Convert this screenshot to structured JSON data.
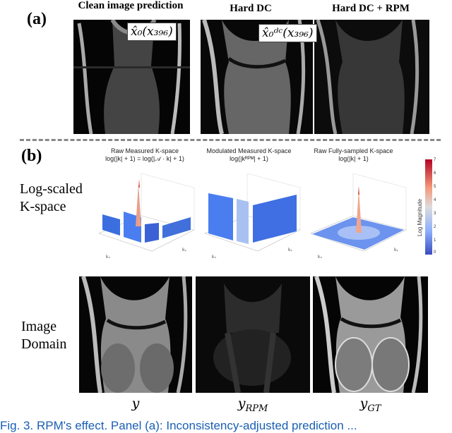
{
  "panel_a": {
    "letter": "(a)",
    "titles": [
      "Clean image prediction",
      "Hard DC",
      "Hard DC + RPM"
    ],
    "labels": [
      "x̂₀(x₃₉₆)",
      "x̂₀ᵈᶜ(x₃₉₆)"
    ]
  },
  "panel_b": {
    "letter": "(b)",
    "row1_label_line1": "Log-scaled",
    "row1_label_line2": "K-space",
    "row2_label_line1": "Image",
    "row2_label_line2": "Domain",
    "kspace_titles": [
      {
        "line1": "Raw Measured K-space",
        "line2": "log(|k| + 1) = log(|𝒜 · k| + 1)"
      },
      {
        "line1": "Modulated Measured K-space",
        "line2": "log(|kᴿᴾᴹ| + 1)"
      },
      {
        "line1": "Raw Fully-sampled K-space",
        "line2": "log(|k| + 1)"
      }
    ],
    "colorbar_label": "Log Magnitude",
    "colorbar_ticks": [
      "7",
      "6",
      "5",
      "4",
      "3",
      "2",
      "1",
      "0"
    ],
    "bottom_labels": [
      "y",
      "y_RPM",
      "y_GT"
    ]
  },
  "caption": "Fig. 3.  RPM's effect. Panel (a): Inconsistency-adjusted prediction ..."
}
